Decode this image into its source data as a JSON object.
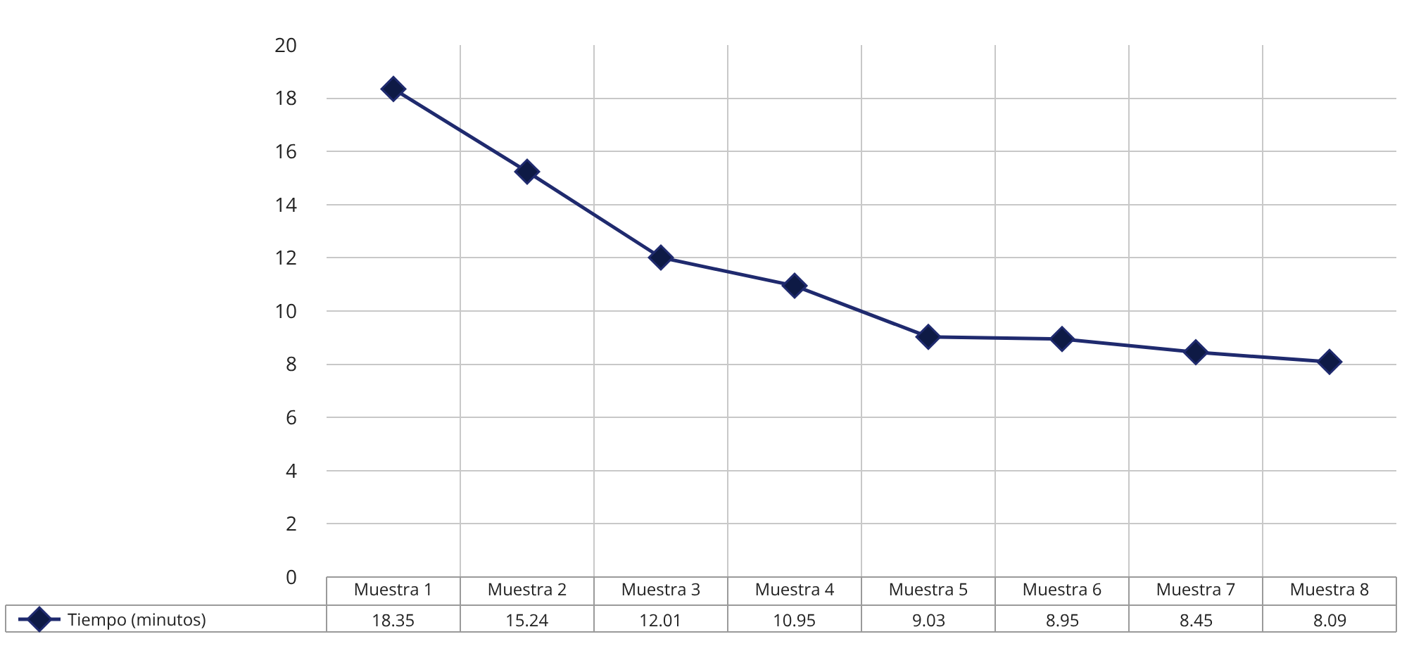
{
  "chart_data": {
    "type": "line",
    "categories": [
      "Muestra 1",
      "Muestra 2",
      "Muestra 3",
      "Muestra 4",
      "Muestra 5",
      "Muestra 6",
      "Muestra 7",
      "Muestra 8"
    ],
    "series": [
      {
        "name": "Tiempo (minutos)",
        "color": "#1f2a6e",
        "values": [
          18.35,
          15.24,
          12.01,
          10.95,
          9.03,
          8.95,
          8.45,
          8.09
        ]
      }
    ],
    "ylim": [
      0,
      20
    ],
    "yticks": [
      0,
      2,
      4,
      6,
      8,
      10,
      12,
      14,
      16,
      18,
      20
    ],
    "grid": true,
    "legend": "bottom left",
    "marker": "diamond",
    "line_style": "solid",
    "data_labels": true
  }
}
